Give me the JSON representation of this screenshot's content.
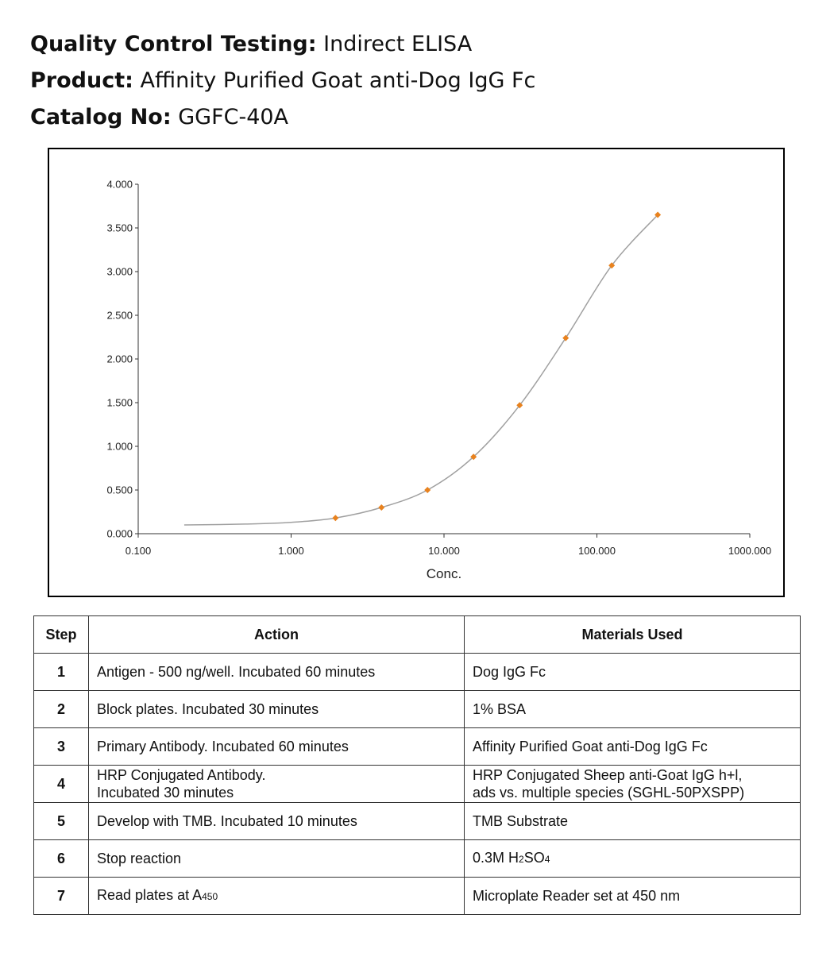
{
  "header": {
    "qc_label": "Quality Control Testing:",
    "qc_value": "Indirect ELISA",
    "product_label": "Product:",
    "product_value": "Affinity Purified Goat anti-Dog IgG Fc",
    "catalog_label": "Catalog No:",
    "catalog_value": "GGFC-40A"
  },
  "chart_data": {
    "type": "scatter",
    "x_scale": "log",
    "xlabel": "Conc.",
    "ylabel": "",
    "title": "",
    "xlim": [
      0.1,
      1000
    ],
    "ylim": [
      0,
      4
    ],
    "x_ticks": [
      "0.100",
      "1.000",
      "10.000",
      "100.000",
      "1000.000"
    ],
    "y_ticks": [
      "0.000",
      "0.500",
      "1.000",
      "1.500",
      "2.000",
      "2.500",
      "3.000",
      "3.500",
      "4.000"
    ],
    "series": [
      {
        "x": [
          1.95,
          3.9,
          7.8,
          15.6,
          31.25,
          62.5,
          125,
          250
        ],
        "y": [
          0.18,
          0.3,
          0.5,
          0.88,
          1.47,
          2.24,
          3.07,
          3.65
        ],
        "color": "#E8821E"
      }
    ],
    "fit_curve": {
      "x": [
        0.2,
        0.5,
        1,
        1.95,
        3.9,
        7.8,
        15.6,
        31.25,
        62.5,
        125,
        250
      ],
      "y": [
        0.1,
        0.11,
        0.13,
        0.18,
        0.3,
        0.5,
        0.88,
        1.47,
        2.24,
        3.07,
        3.65
      ],
      "color": "#a0a0a0"
    },
    "grid": false,
    "legend": "none"
  },
  "table": {
    "headers": [
      "Step",
      "Action",
      "Materials Used"
    ],
    "rows": [
      {
        "step": "1",
        "action": [
          "Antigen - 500 ng/well. Incubated 60 minutes"
        ],
        "material": [
          "Dog IgG Fc"
        ]
      },
      {
        "step": "2",
        "action": [
          "Block plates. Incubated 30 minutes"
        ],
        "material": [
          "1% BSA"
        ]
      },
      {
        "step": "3",
        "action": [
          "Primary Antibody.  Incubated 60 minutes"
        ],
        "material": [
          "Affinity Purified Goat anti-Dog IgG Fc"
        ]
      },
      {
        "step": "4",
        "action": [
          "HRP Conjugated Antibody.",
          "Incubated 30 minutes"
        ],
        "material": [
          "HRP Conjugated Sheep anti-Goat IgG h+l,",
          "ads vs. multiple species (SGHL-50PXSPP)"
        ]
      },
      {
        "step": "5",
        "action": [
          "Develop with TMB.  Incubated 10 minutes"
        ],
        "material": [
          "TMB Substrate"
        ]
      },
      {
        "step": "6",
        "action": [
          "Stop reaction"
        ],
        "material_parts": [
          "0.3M H",
          "2",
          "SO",
          "4"
        ]
      },
      {
        "step": "7",
        "action_parts": [
          "Read plates at A",
          "450"
        ],
        "material": [
          "Microplate Reader set at 450 nm"
        ]
      }
    ]
  }
}
